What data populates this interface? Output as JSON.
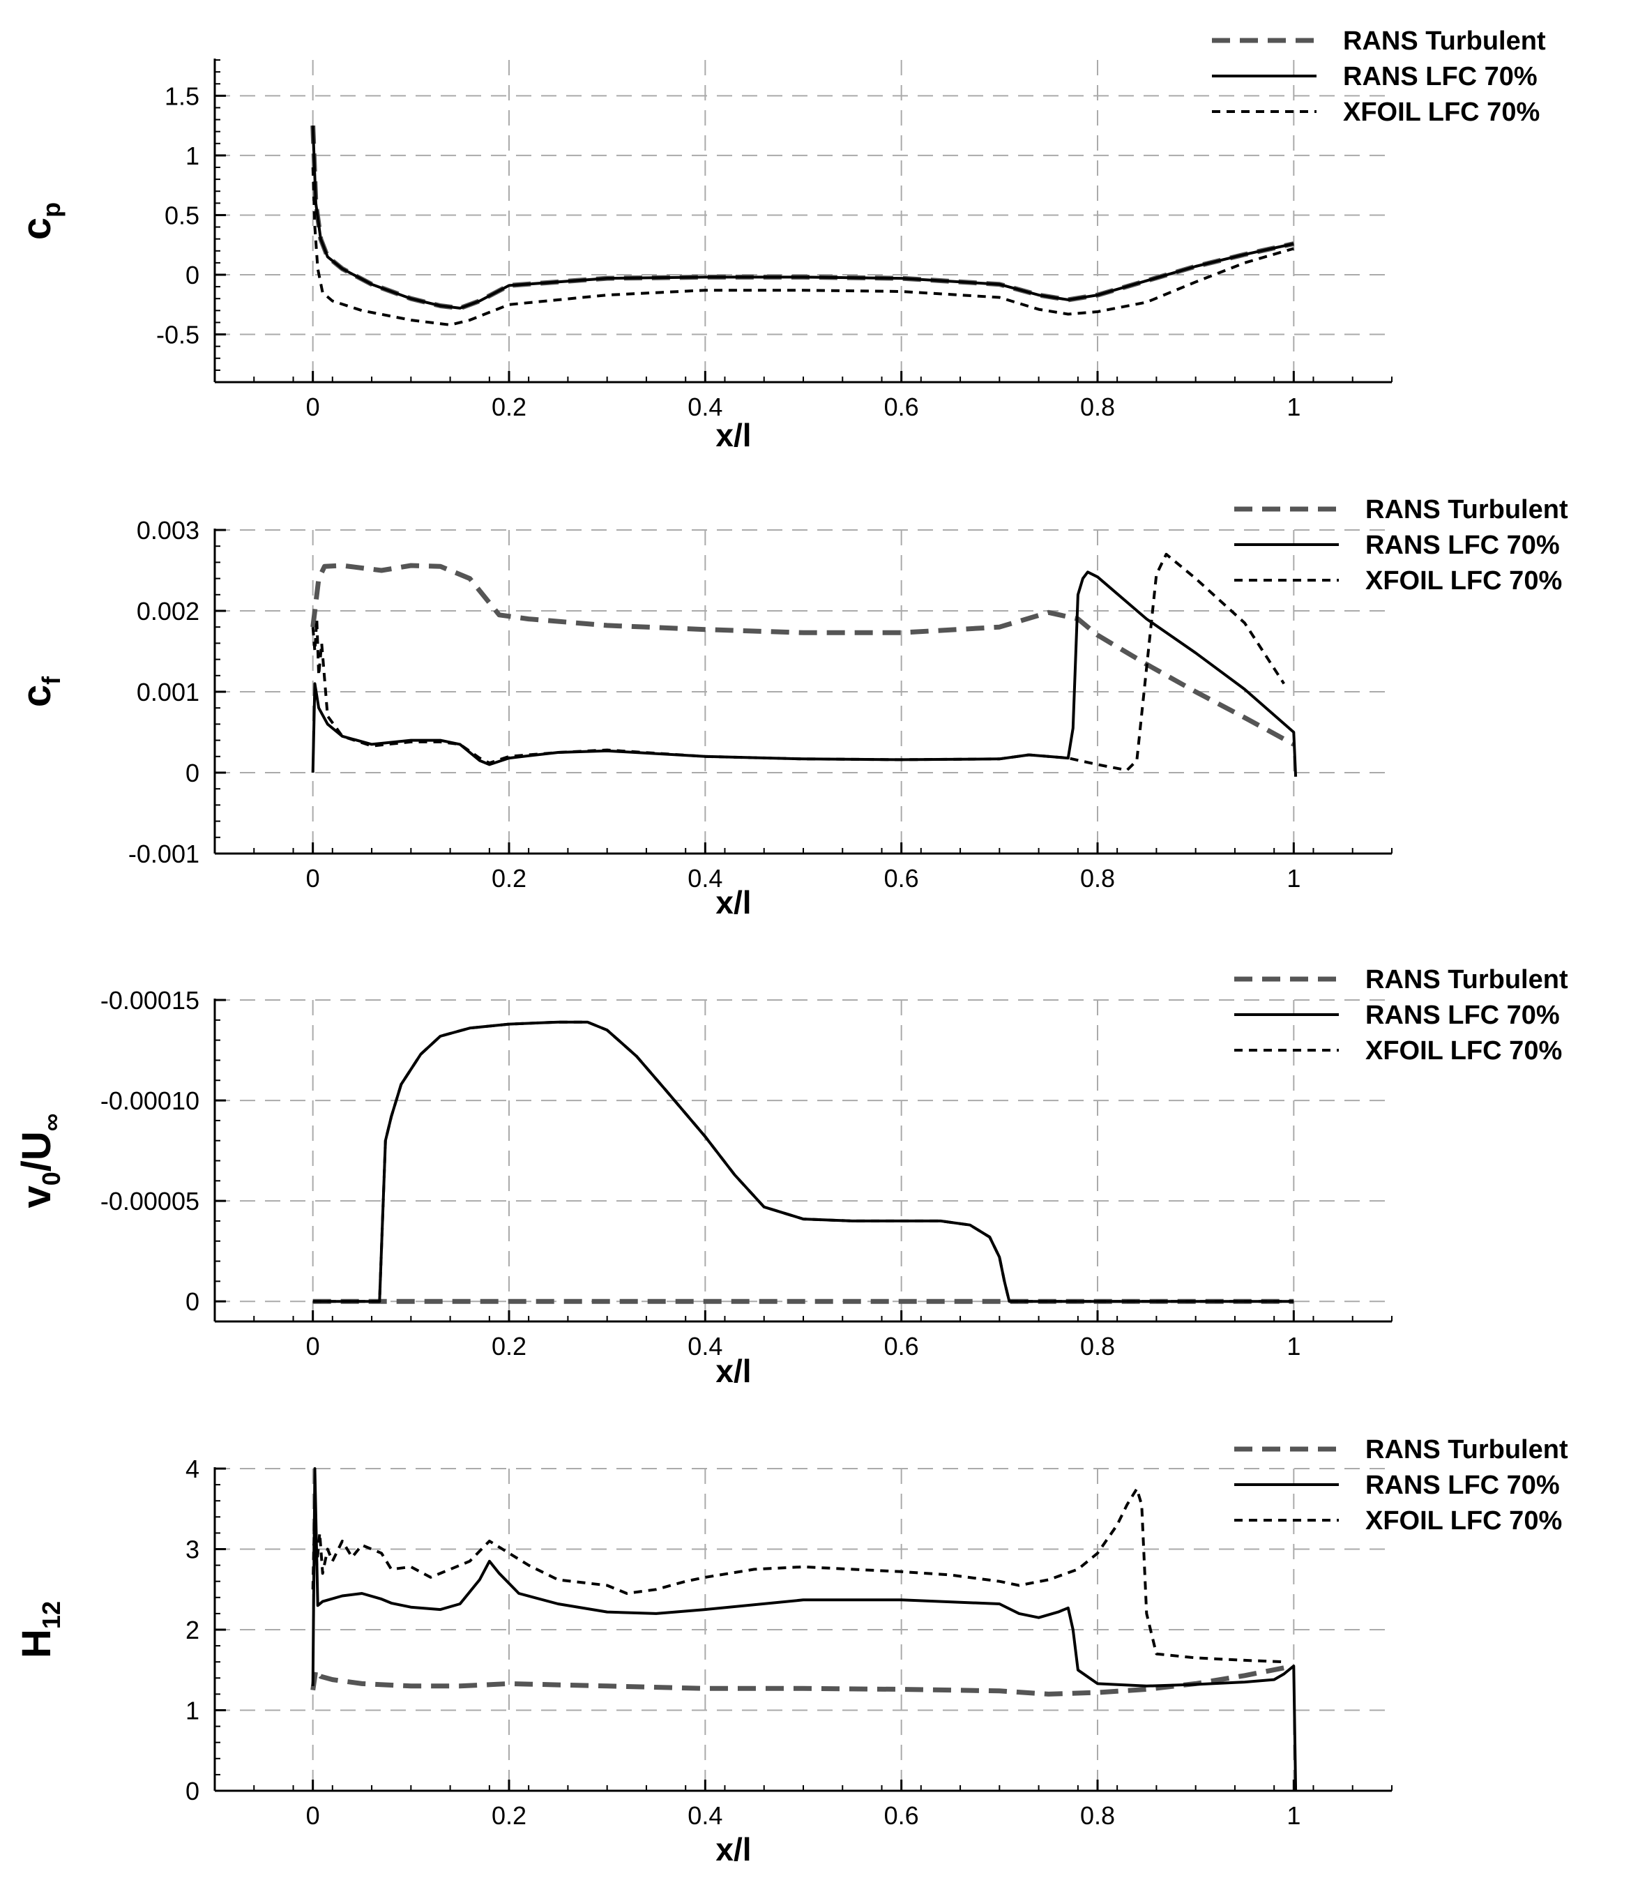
{
  "colors": {
    "turbulent": "#555555",
    "lfc": "#000000",
    "xfoil": "#000000",
    "grid": "#aaaaaa",
    "axis": "#000000"
  },
  "chart_data": [
    {
      "type": "line",
      "xlabel": "x/l",
      "ylabel": {
        "main": "c",
        "sub": "p"
      },
      "xlim": [
        -0.1,
        1.1
      ],
      "ylim": [
        -0.9,
        1.8
      ],
      "y_inverted": true,
      "xticks": [
        0,
        0.2,
        0.4,
        0.6,
        0.8,
        1
      ],
      "xtick_labels": [
        "0",
        "0.2",
        "0.4",
        "0.6",
        "0.8",
        "1"
      ],
      "yticks": [
        -0.5,
        0,
        0.5,
        1,
        1.5
      ],
      "ytick_labels": [
        "-0.5",
        "0",
        "0.5",
        "1",
        "1.5"
      ],
      "grid": true,
      "legend": {
        "position": "top-right",
        "entries": [
          "RANS Turbulent",
          "RANS LFC 70%",
          "XFOIL LFC 70%"
        ]
      },
      "series": [
        {
          "name": "RANS Turbulent",
          "style": "dash-gray",
          "x": [
            0,
            0.003,
            0.008,
            0.015,
            0.03,
            0.06,
            0.1,
            0.13,
            0.15,
            0.17,
            0.2,
            0.3,
            0.4,
            0.5,
            0.6,
            0.7,
            0.74,
            0.77,
            0.8,
            0.85,
            0.9,
            0.95,
            1.0
          ],
          "y": [
            1.25,
            0.6,
            0.3,
            0.15,
            0.05,
            -0.08,
            -0.2,
            -0.26,
            -0.28,
            -0.22,
            -0.09,
            -0.03,
            -0.02,
            -0.02,
            -0.03,
            -0.08,
            -0.17,
            -0.21,
            -0.17,
            -0.05,
            0.07,
            0.17,
            0.26
          ]
        },
        {
          "name": "RANS LFC 70%",
          "style": "solid",
          "x": [
            0,
            0.003,
            0.008,
            0.015,
            0.03,
            0.06,
            0.1,
            0.13,
            0.15,
            0.17,
            0.2,
            0.3,
            0.4,
            0.5,
            0.6,
            0.7,
            0.74,
            0.77,
            0.8,
            0.85,
            0.9,
            0.95,
            1.0
          ],
          "y": [
            1.25,
            0.6,
            0.3,
            0.15,
            0.05,
            -0.08,
            -0.2,
            -0.26,
            -0.28,
            -0.22,
            -0.09,
            -0.03,
            -0.02,
            -0.02,
            -0.03,
            -0.08,
            -0.17,
            -0.21,
            -0.17,
            -0.05,
            0.07,
            0.17,
            0.26
          ]
        },
        {
          "name": "XFOIL LFC 70%",
          "style": "dash-fine",
          "x": [
            0,
            0.002,
            0.005,
            0.01,
            0.02,
            0.05,
            0.1,
            0.14,
            0.16,
            0.2,
            0.3,
            0.4,
            0.5,
            0.6,
            0.7,
            0.74,
            0.77,
            0.8,
            0.85,
            0.9,
            0.95,
            1.0
          ],
          "y": [
            0.9,
            0.4,
            0.05,
            -0.15,
            -0.22,
            -0.3,
            -0.38,
            -0.42,
            -0.38,
            -0.25,
            -0.17,
            -0.13,
            -0.13,
            -0.14,
            -0.19,
            -0.29,
            -0.33,
            -0.31,
            -0.23,
            -0.06,
            0.1,
            0.22
          ]
        }
      ]
    },
    {
      "type": "line",
      "xlabel": "x/l",
      "ylabel": {
        "main": "c",
        "sub": "f"
      },
      "xlim": [
        -0.1,
        1.1
      ],
      "ylim": [
        -0.001,
        0.003
      ],
      "y_inverted": false,
      "xticks": [
        0,
        0.2,
        0.4,
        0.6,
        0.8,
        1
      ],
      "xtick_labels": [
        "0",
        "0.2",
        "0.4",
        "0.6",
        "0.8",
        "1"
      ],
      "yticks": [
        -0.001,
        0,
        0.001,
        0.002,
        0.003
      ],
      "ytick_labels": [
        "-0.001",
        "0",
        "0.001",
        "0.002",
        "0.003"
      ],
      "grid": true,
      "legend": {
        "position": "top-right",
        "entries": [
          "RANS Turbulent",
          "RANS LFC 70%",
          "XFOIL LFC 70%"
        ]
      },
      "series": [
        {
          "name": "RANS Turbulent",
          "style": "dash-gray",
          "x": [
            0,
            0.003,
            0.006,
            0.012,
            0.03,
            0.07,
            0.1,
            0.13,
            0.16,
            0.19,
            0.22,
            0.3,
            0.4,
            0.5,
            0.6,
            0.7,
            0.75,
            0.78,
            0.8,
            0.85,
            0.9,
            0.95,
            1.0
          ],
          "y": [
            0.0018,
            0.0021,
            0.0024,
            0.00255,
            0.00256,
            0.0025,
            0.00256,
            0.00255,
            0.0024,
            0.00195,
            0.0019,
            0.00182,
            0.00177,
            0.00173,
            0.00173,
            0.0018,
            0.00198,
            0.0019,
            0.0017,
            0.00134,
            0.001,
            0.00068,
            0.00035
          ]
        },
        {
          "name": "RANS LFC 70%",
          "style": "solid",
          "x": [
            0,
            0.002,
            0.006,
            0.015,
            0.03,
            0.06,
            0.1,
            0.13,
            0.15,
            0.17,
            0.18,
            0.2,
            0.25,
            0.3,
            0.4,
            0.5,
            0.6,
            0.7,
            0.73,
            0.77,
            0.775,
            0.78,
            0.785,
            0.79,
            0.8,
            0.85,
            0.9,
            0.95,
            1.0,
            1.002
          ],
          "y": [
            0,
            0.0011,
            0.0008,
            0.0006,
            0.00045,
            0.00035,
            0.0004,
            0.0004,
            0.00035,
            0.00015,
            0.0001,
            0.00018,
            0.00025,
            0.00027,
            0.0002,
            0.00017,
            0.00016,
            0.00017,
            0.00022,
            0.00018,
            0.00055,
            0.0022,
            0.0024,
            0.00248,
            0.00242,
            0.0019,
            0.00148,
            0.00103,
            0.0005,
            -5e-05
          ]
        },
        {
          "name": "XFOIL LFC 70%",
          "style": "dash-fine",
          "x": [
            0,
            0.002,
            0.004,
            0.006,
            0.009,
            0.015,
            0.03,
            0.06,
            0.1,
            0.13,
            0.15,
            0.17,
            0.18,
            0.2,
            0.25,
            0.3,
            0.4,
            0.5,
            0.6,
            0.7,
            0.73,
            0.77,
            0.8,
            0.83,
            0.84,
            0.86,
            0.87,
            0.9,
            0.95,
            0.99
          ],
          "y": [
            0.0018,
            0.0015,
            0.0019,
            0.0012,
            0.0016,
            0.0007,
            0.00045,
            0.00033,
            0.00038,
            0.00038,
            0.00035,
            0.00018,
            0.00012,
            0.0002,
            0.00025,
            0.00028,
            0.0002,
            0.00017,
            0.00016,
            0.00017,
            0.00022,
            0.00018,
            0.0001,
            3e-05,
            0.00015,
            0.00245,
            0.0027,
            0.0024,
            0.00185,
            0.0011
          ]
        }
      ]
    },
    {
      "type": "line",
      "xlabel": "x/l",
      "ylabel": {
        "main": "v",
        "sub0": "0",
        "slash": "/U",
        "sub": "∞"
      },
      "xlim": [
        -0.1,
        1.1
      ],
      "ylim": [
        1e-05,
        -0.00015
      ],
      "y_inverted": true,
      "xticks": [
        0,
        0.2,
        0.4,
        0.6,
        0.8,
        1
      ],
      "xtick_labels": [
        "0",
        "0.2",
        "0.4",
        "0.6",
        "0.8",
        "1"
      ],
      "yticks": [
        0,
        -5e-05,
        -0.0001,
        -0.00015
      ],
      "ytick_labels": [
        "0",
        "-0.00005",
        "-0.00010",
        "-0.00015"
      ],
      "grid": true,
      "legend": {
        "position": "top-right",
        "entries": [
          "RANS Turbulent",
          "RANS LFC 70%",
          "XFOIL LFC 70%"
        ]
      },
      "series": [
        {
          "name": "RANS Turbulent",
          "style": "dash-gray",
          "x": [
            0,
            1.0
          ],
          "y": [
            0,
            0
          ]
        },
        {
          "name": "RANS LFC 70%",
          "style": "solid",
          "x": [
            0,
            0.068,
            0.074,
            0.08,
            0.09,
            0.11,
            0.13,
            0.16,
            0.2,
            0.25,
            0.28,
            0.3,
            0.33,
            0.36,
            0.4,
            0.43,
            0.46,
            0.5,
            0.55,
            0.6,
            0.64,
            0.67,
            0.69,
            0.7,
            0.705,
            0.71,
            0.72,
            0.8,
            0.9,
            1.0
          ],
          "y": [
            0,
            0,
            -8e-05,
            -9.2e-05,
            -0.000108,
            -0.000123,
            -0.000132,
            -0.000136,
            -0.000138,
            -0.000139,
            -0.000139,
            -0.000135,
            -0.000122,
            -0.000105,
            -8.2e-05,
            -6.3e-05,
            -4.7e-05,
            -4.1e-05,
            -4e-05,
            -4e-05,
            -4e-05,
            -3.8e-05,
            -3.2e-05,
            -2.2e-05,
            -1e-05,
            0,
            0,
            0,
            0,
            0
          ]
        },
        {
          "name": "XFOIL LFC 70%",
          "style": "dash-fine",
          "x": [
            0,
            0.068,
            0.074,
            0.08,
            0.09,
            0.11,
            0.13,
            0.16,
            0.2,
            0.25,
            0.28,
            0.3,
            0.33,
            0.36,
            0.4,
            0.43,
            0.46,
            0.5,
            0.55,
            0.6,
            0.64,
            0.67,
            0.69,
            0.7,
            0.705,
            0.71,
            0.72,
            0.8,
            0.9,
            1.0
          ],
          "y": [
            0,
            0,
            -8e-05,
            -9.2e-05,
            -0.000108,
            -0.000123,
            -0.000132,
            -0.000136,
            -0.000138,
            -0.000139,
            -0.000139,
            -0.000135,
            -0.000122,
            -0.000105,
            -8.2e-05,
            -6.3e-05,
            -4.7e-05,
            -4.1e-05,
            -4e-05,
            -4e-05,
            -4e-05,
            -3.8e-05,
            -3.2e-05,
            -2.2e-05,
            -1e-05,
            0,
            0,
            0,
            0,
            0
          ]
        }
      ]
    },
    {
      "type": "line",
      "xlabel": "x/l",
      "ylabel": {
        "main": "H",
        "sub": "12"
      },
      "xlim": [
        -0.1,
        1.1
      ],
      "ylim": [
        0,
        4
      ],
      "y_inverted": false,
      "xticks": [
        0,
        0.2,
        0.4,
        0.6,
        0.8,
        1
      ],
      "xtick_labels": [
        "0",
        "0.2",
        "0.4",
        "0.6",
        "0.8",
        "1"
      ],
      "yticks": [
        0,
        1,
        2,
        3,
        4
      ],
      "ytick_labels": [
        "0",
        "1",
        "2",
        "3",
        "4"
      ],
      "grid": true,
      "legend": {
        "position": "top-right",
        "entries": [
          "RANS Turbulent",
          "RANS LFC 70%",
          "XFOIL LFC 70%"
        ]
      },
      "series": [
        {
          "name": "RANS Turbulent",
          "style": "dash-gray",
          "x": [
            0,
            0.003,
            0.008,
            0.02,
            0.05,
            0.1,
            0.15,
            0.2,
            0.3,
            0.4,
            0.5,
            0.6,
            0.7,
            0.75,
            0.8,
            0.85,
            0.9,
            0.95,
            1.0
          ],
          "y": [
            1.25,
            1.5,
            1.42,
            1.38,
            1.33,
            1.3,
            1.3,
            1.33,
            1.3,
            1.27,
            1.27,
            1.26,
            1.24,
            1.2,
            1.22,
            1.26,
            1.33,
            1.43,
            1.55
          ]
        },
        {
          "name": "RANS LFC 70%",
          "style": "solid",
          "x": [
            0,
            0.002,
            0.005,
            0.01,
            0.03,
            0.05,
            0.07,
            0.08,
            0.1,
            0.13,
            0.15,
            0.17,
            0.18,
            0.19,
            0.21,
            0.25,
            0.3,
            0.35,
            0.4,
            0.5,
            0.6,
            0.7,
            0.72,
            0.74,
            0.76,
            0.77,
            0.775,
            0.78,
            0.8,
            0.85,
            0.9,
            0.95,
            0.98,
            0.99,
            1.0,
            1.002
          ],
          "y": [
            1.3,
            4.0,
            2.3,
            2.35,
            2.42,
            2.45,
            2.38,
            2.33,
            2.28,
            2.25,
            2.32,
            2.62,
            2.85,
            2.7,
            2.45,
            2.32,
            2.22,
            2.2,
            2.25,
            2.37,
            2.37,
            2.32,
            2.2,
            2.15,
            2.22,
            2.27,
            2.0,
            1.5,
            1.33,
            1.3,
            1.32,
            1.35,
            1.38,
            1.45,
            1.55,
            0
          ]
        },
        {
          "name": "XFOIL LFC 70%",
          "style": "dash-fine",
          "x": [
            0,
            0.002,
            0.004,
            0.007,
            0.01,
            0.015,
            0.02,
            0.03,
            0.04,
            0.05,
            0.07,
            0.08,
            0.1,
            0.12,
            0.14,
            0.16,
            0.18,
            0.2,
            0.22,
            0.25,
            0.3,
            0.32,
            0.35,
            0.38,
            0.4,
            0.45,
            0.5,
            0.55,
            0.6,
            0.65,
            0.7,
            0.72,
            0.75,
            0.78,
            0.8,
            0.82,
            0.83,
            0.84,
            0.845,
            0.85,
            0.86,
            0.9,
            0.95,
            0.99
          ],
          "y": [
            2.5,
            3.6,
            2.8,
            3.2,
            2.7,
            3.0,
            2.85,
            3.1,
            2.9,
            3.05,
            2.95,
            2.75,
            2.78,
            2.65,
            2.75,
            2.85,
            3.1,
            2.95,
            2.8,
            2.62,
            2.55,
            2.45,
            2.5,
            2.6,
            2.65,
            2.75,
            2.78,
            2.75,
            2.72,
            2.68,
            2.6,
            2.55,
            2.62,
            2.75,
            2.95,
            3.3,
            3.55,
            3.75,
            3.55,
            2.2,
            1.7,
            1.65,
            1.62,
            1.6
          ]
        }
      ]
    }
  ]
}
